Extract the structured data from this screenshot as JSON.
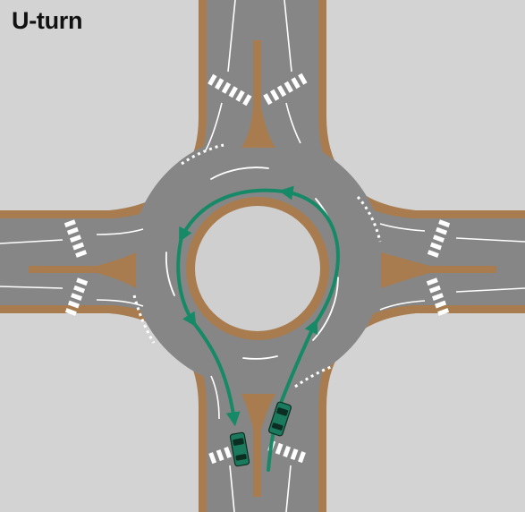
{
  "title": "U-turn",
  "colors": {
    "background": "#d3d3d3",
    "road": "#868686",
    "curb": "#a87c4f",
    "island": "#a87c4f",
    "central_island": "#cfcfcf",
    "lane_marking": "#ffffff",
    "crosswalk_stripe": "#ffffff",
    "path": "#168a66",
    "vehicle": "#1b7a5e",
    "vehicle_window": "#0c2e22"
  },
  "maneuver": {
    "type": "u-turn",
    "entry": "south-approach-inbound",
    "exit": "south-approach-outbound",
    "direction": "counterclockwise"
  },
  "icons": [
    "vehicle-icon"
  ]
}
